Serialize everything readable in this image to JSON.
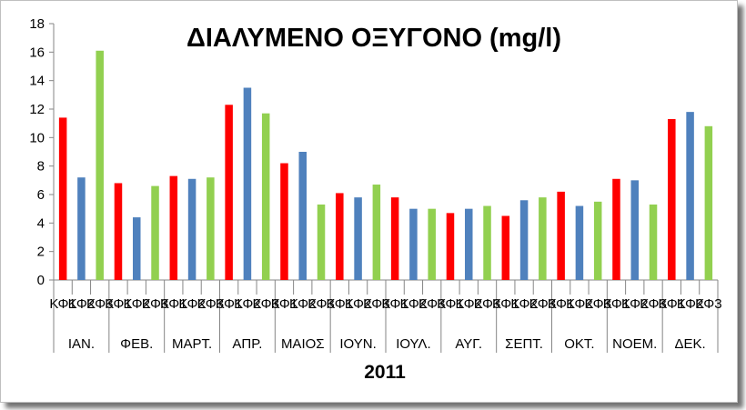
{
  "chart_data": {
    "type": "bar",
    "title": "ΔΙΑΛΥΜΕΝΟ ΟΞΥΓΟΝΟ (mg/l)",
    "xlabel": "2011",
    "ylabel": "",
    "ylim": [
      0,
      18
    ],
    "yticks": [
      0,
      2,
      4,
      6,
      8,
      10,
      12,
      14,
      16,
      18
    ],
    "grid": false,
    "legend": "none",
    "groups": [
      {
        "label": "ΙΑΝ.",
        "bars": [
          {
            "label": "ΚΦ1",
            "value": 11.4,
            "series": "ΚΦ1"
          },
          {
            "label": "ΚΦ2",
            "value": 7.2,
            "series": "ΚΦ2"
          },
          {
            "label": "ΚΦ3",
            "value": 16.1,
            "series": "ΚΦ3"
          }
        ]
      },
      {
        "label": "ΦΕΒ.",
        "bars": [
          {
            "label": "ΚΦ1",
            "value": 6.8,
            "series": "ΚΦ1"
          },
          {
            "label": "ΚΦ2",
            "value": 4.4,
            "series": "ΚΦ2"
          },
          {
            "label": "ΚΦ3",
            "value": 6.6,
            "series": "ΚΦ3"
          }
        ]
      },
      {
        "label": "ΜΑΡΤ.",
        "bars": [
          {
            "label": "ΚΦ1",
            "value": 7.3,
            "series": "ΚΦ1"
          },
          {
            "label": "ΚΦ2",
            "value": 7.1,
            "series": "ΚΦ2"
          },
          {
            "label": "ΚΦ3",
            "value": 7.2,
            "series": "ΚΦ3"
          }
        ]
      },
      {
        "label": "ΑΠΡ.",
        "bars": [
          {
            "label": "ΚΦ1",
            "value": 12.3,
            "series": "ΚΦ1"
          },
          {
            "label": "ΚΦ2",
            "value": 13.5,
            "series": "ΚΦ2"
          },
          {
            "label": "ΚΦ3",
            "value": 11.7,
            "series": "ΚΦ3"
          }
        ]
      },
      {
        "label": "ΜΑΙΟΣ",
        "bars": [
          {
            "label": "ΚΦ1",
            "value": 8.2,
            "series": "ΚΦ1"
          },
          {
            "label": "ΚΦ2",
            "value": 9.0,
            "series": "ΚΦ2"
          },
          {
            "label": "ΚΦ3",
            "value": 5.3,
            "series": "ΚΦ3"
          }
        ]
      },
      {
        "label": "ΙΟΥΝ.",
        "bars": [
          {
            "label": "ΚΦ1",
            "value": 6.1,
            "series": "ΚΦ1"
          },
          {
            "label": "ΚΦ2",
            "value": 5.8,
            "series": "ΚΦ2"
          },
          {
            "label": "ΚΦ3",
            "value": 6.7,
            "series": "ΚΦ3"
          }
        ]
      },
      {
        "label": "ΙΟΥΛ.",
        "bars": [
          {
            "label": "ΚΦ1",
            "value": 5.8,
            "series": "ΚΦ1"
          },
          {
            "label": "ΚΦ2",
            "value": 5.0,
            "series": "ΚΦ2"
          },
          {
            "label": "ΚΦ3",
            "value": 5.0,
            "series": "ΚΦ3"
          }
        ]
      },
      {
        "label": "ΑΥΓ.",
        "bars": [
          {
            "label": "ΚΦ1",
            "value": 4.7,
            "series": "ΚΦ1"
          },
          {
            "label": "ΚΦ2",
            "value": 5.0,
            "series": "ΚΦ2"
          },
          {
            "label": "ΚΦ3",
            "value": 5.2,
            "series": "ΚΦ3"
          }
        ]
      },
      {
        "label": "ΣΕΠΤ.",
        "bars": [
          {
            "label": "ΚΦ1",
            "value": 4.5,
            "series": "ΚΦ1"
          },
          {
            "label": "ΚΦ2",
            "value": 5.6,
            "series": "ΚΦ2"
          },
          {
            "label": "ΚΦ3",
            "value": 5.8,
            "series": "ΚΦ3"
          }
        ]
      },
      {
        "label": "ΟΚΤ.",
        "bars": [
          {
            "label": "ΚΦ1",
            "value": 6.2,
            "series": "ΚΦ1"
          },
          {
            "label": "ΚΦ2",
            "value": 5.2,
            "series": "ΚΦ2"
          },
          {
            "label": "ΚΦ3",
            "value": 5.5,
            "series": "ΚΦ3"
          }
        ]
      },
      {
        "label": "ΝΟΕΜ.",
        "bars": [
          {
            "label": "ΚΦ1",
            "value": 7.1,
            "series": "ΚΦ1"
          },
          {
            "label": "ΚΦ2",
            "value": 7.0,
            "series": "ΚΦ2"
          },
          {
            "label": "ΚΦ3",
            "value": 5.3,
            "series": "ΚΦ3"
          }
        ]
      },
      {
        "label": "ΔΕΚ.",
        "bars": [
          {
            "label": "ΚΦ1",
            "value": 11.3,
            "series": "ΚΦ1"
          },
          {
            "label": "ΚΦ2",
            "value": 11.8,
            "series": "ΚΦ2"
          },
          {
            "label": "ΚΦ3",
            "value": 10.8,
            "series": "ΚΦ3"
          }
        ]
      }
    ],
    "colors": {
      "ΚΦ1": "#ff0000",
      "ΚΦ2": "#4f81bd",
      "ΚΦ3": "#92d050"
    }
  }
}
